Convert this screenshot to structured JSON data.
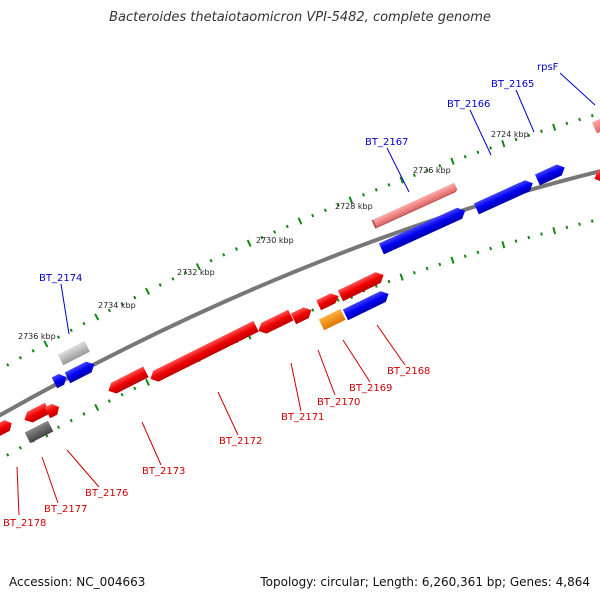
{
  "title": "Bacteroides thetaiotaomicron VPI-5482, complete genome",
  "footer": {
    "accession": "Accession: NC_004663",
    "stats": "Topology: circular; Length: 6,260,361 bp; Genes: 4,864"
  },
  "scale_labels": [
    "2724 kbp",
    "2726 kbp",
    "2728 kbp",
    "2730 kbp",
    "2732 kbp",
    "2734 kbp",
    "2736 kbp"
  ],
  "colors": {
    "forward_gene": "#0000ee",
    "reverse_gene": "#ee0000",
    "forward_label": "#0000cc",
    "reverse_label": "#cc0000",
    "tick": "#118811",
    "backbone": "#777777"
  },
  "gene_labels": {
    "forward": [
      "rpsF",
      "BT_2165",
      "BT_2166",
      "BT_2167",
      "BT_2174"
    ],
    "reverse": [
      "BT_2168",
      "BT_2169",
      "BT_2170",
      "BT_2171",
      "BT_2172",
      "BT_2173",
      "BT_2176",
      "BT_2177",
      "BT_2178"
    ]
  }
}
